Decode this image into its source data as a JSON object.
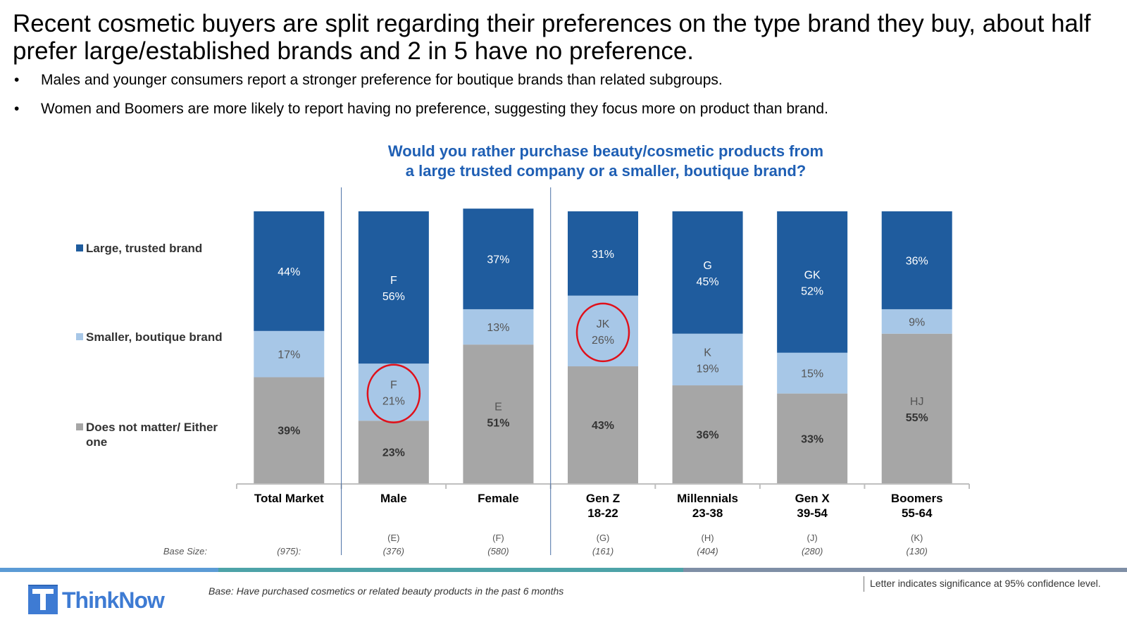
{
  "headline": "Recent cosmetic buyers are split regarding their preferences on the type brand they buy, about half prefer large/established brands and 2 in 5 have no preference.",
  "bullets": [
    "Males and younger consumers report a stronger preference for boutique brands than related subgroups.",
    "Women and Boomers are more likely to report having no preference, suggesting they focus more on product than brand."
  ],
  "bullet_glyph": "•",
  "chart_title_line1": "Would you rather purchase beauty/cosmetic products from",
  "chart_title_line2": "a large trusted company or a smaller, boutique brand?",
  "chart_data": {
    "type": "bar",
    "stacked": true,
    "title": "Would you rather purchase beauty/cosmetic products from a large trusted company or a smaller, boutique brand?",
    "unit": "%",
    "ylim": [
      0,
      100
    ],
    "categories": [
      "Total Market",
      "Male",
      "Female",
      "Gen Z 18-22",
      "Millennials 23-38",
      "Gen X 39-54",
      "Boomers 55-64"
    ],
    "category_lines": [
      [
        "Total Market"
      ],
      [
        "Male"
      ],
      [
        "Female"
      ],
      [
        "Gen Z",
        "18-22"
      ],
      [
        "Millennials",
        "23-38"
      ],
      [
        "Gen X",
        "39-54"
      ],
      [
        "Boomers",
        "55-64"
      ]
    ],
    "group_separators_after": [
      0,
      2
    ],
    "series": [
      {
        "name": "Does not matter/ Either one",
        "color": "#A6A6A6",
        "values": [
          39,
          23,
          51,
          43,
          36,
          33,
          55
        ],
        "sig": [
          "",
          "",
          "E",
          "",
          "",
          "",
          "HJ"
        ]
      },
      {
        "name": "Smaller, boutique brand",
        "color": "#A7C7E7",
        "values": [
          17,
          21,
          13,
          26,
          19,
          15,
          9
        ],
        "sig": [
          "",
          "F",
          "",
          "JK",
          "K",
          "",
          ""
        ]
      },
      {
        "name": "Large, trusted brand",
        "color": "#1F5C9E",
        "values": [
          44,
          56,
          37,
          31,
          45,
          52,
          36
        ],
        "sig": [
          "",
          "F",
          "",
          "",
          "G",
          "GK",
          ""
        ]
      }
    ],
    "legend": [
      "Large, trusted brand",
      "Smaller, boutique brand",
      "Does not matter/ Either one"
    ],
    "highlighted": [
      {
        "category": "Male",
        "series": "Smaller, boutique brand"
      },
      {
        "category": "Gen Z 18-22",
        "series": "Smaller, boutique brand"
      }
    ],
    "highlight_color": "#E0101A",
    "base_size_label": "Base Size:",
    "base_letters": [
      "",
      "(E)",
      "(F)",
      "(G)",
      "(H)",
      "(J)",
      "(K)"
    ],
    "base_sizes": [
      "(975):",
      "(376)",
      "(580)",
      "(161)",
      "(404)",
      "(280)",
      "(130)"
    ]
  },
  "footer": {
    "logo_text": "ThinkNow",
    "base_note": "Base: Have purchased cosmetics or related beauty products in the past 6 months",
    "significance_note": "Letter indicates significance at 95% confidence level."
  },
  "colors": {
    "title_blue": "#1F5FB4",
    "dark_blue": "#1F5C9E",
    "light_blue": "#A7C7E7",
    "gray": "#A6A6A6",
    "strip_blue": "#5B9BD5",
    "strip_teal": "#4DA3A8",
    "strip_gray": "#7F8FA6",
    "logo_blue": "#3E7BD3"
  }
}
